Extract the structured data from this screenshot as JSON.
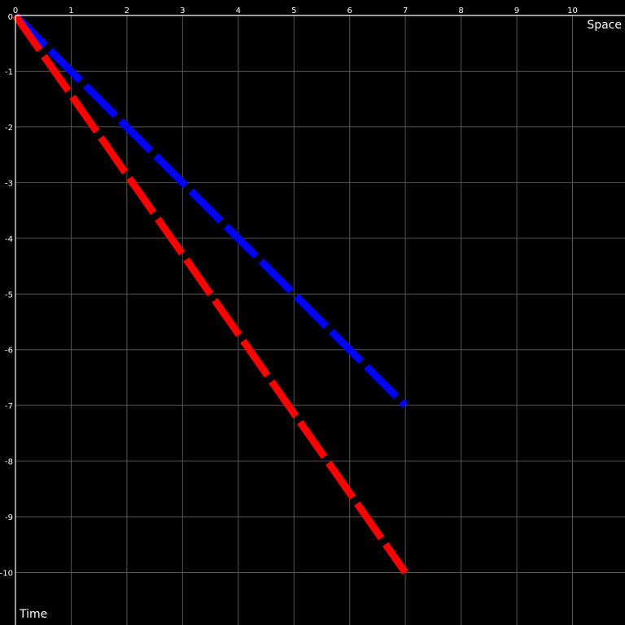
{
  "chart_data": {
    "type": "line",
    "title": "",
    "xlabel": "Space",
    "ylabel": "Time",
    "xlim": [
      0,
      10.9
    ],
    "ylim": [
      -10.9,
      0
    ],
    "x_ticks": [
      "0",
      "1",
      "2",
      "3",
      "4",
      "5",
      "6",
      "7",
      "8",
      "9",
      "10"
    ],
    "y_ticks": [
      "0",
      "-1",
      "-2",
      "-3",
      "-4",
      "-5",
      "-6",
      "-7",
      "-8",
      "-9",
      "-10"
    ],
    "grid": true,
    "legend": "none",
    "series": [
      {
        "color": "#0000ff",
        "dashed": true,
        "x": [
          0,
          7
        ],
        "y": [
          0,
          -7
        ]
      },
      {
        "color": "#ff0000",
        "dashed": true,
        "x": [
          0,
          7
        ],
        "y": [
          0,
          -10
        ]
      }
    ]
  },
  "colors": {
    "background": "#000000",
    "grid": "#555555",
    "axis": "#ffffff",
    "text": "#ffffff"
  }
}
